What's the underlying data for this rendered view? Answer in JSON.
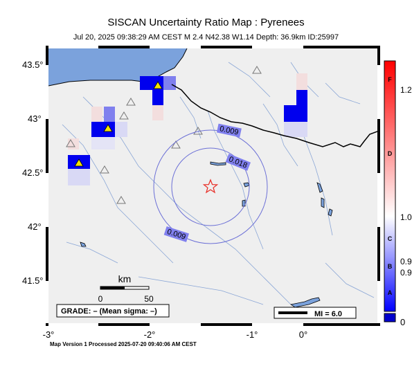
{
  "map": {
    "title": "SISCAN Uncertainty Ratio Map : Pyrenees",
    "subtitle": "Jul 20, 2025 09:38:29 AM CEST   M 2.4   N42.38 W1.14   Depth: 36.9km   ID:25997",
    "footer": "Map Version 1 Processed 2025-07-20 09:40:06 AM CEST",
    "lat_ticks": [
      "43.5°",
      "43°",
      "42.5°",
      "42°",
      "41.5°"
    ],
    "lon_ticks": [
      "-3°",
      "-2°",
      "-1°",
      "0°"
    ],
    "contour_labels": [
      "0.009",
      "0.018",
      "0.009"
    ],
    "scale_title": "km",
    "scale_ticks": [
      "0",
      "50"
    ],
    "grade_text": "GRADE: – (Mean sigma: –)",
    "mi_text": "MI = 6.0",
    "epicenter": {
      "lat": 42.38,
      "lon": -1.14
    },
    "colors": {
      "sea": "#7ba2dc",
      "land": "#efefef",
      "river": "#8aa6d6",
      "border": "#000000",
      "epicenter": "#e8322b",
      "contour": "#6b6fd6",
      "station": "#f5e400"
    }
  },
  "colorbar": {
    "grades": [
      "F",
      "D",
      "C",
      "B",
      "A"
    ],
    "values": [
      "1.2",
      "1.0",
      "0.9",
      "0.9",
      "0"
    ],
    "colors": {
      "top": "#ff0000",
      "middle": "#ffffff",
      "bottom": "#0000ff",
      "under": "#0000cc"
    }
  }
}
